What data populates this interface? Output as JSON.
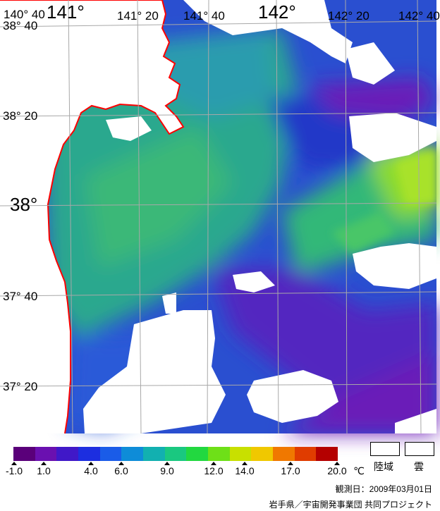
{
  "map": {
    "lon_labels": [
      "140° 40",
      "141°",
      "141° 20",
      "141° 40",
      "142°",
      "142° 20",
      "142° 40"
    ],
    "lat_labels": [
      "38° 40",
      "38° 20",
      "38°",
      "37° 40",
      "37° 20"
    ],
    "colors": {
      "land": "#ffffff",
      "cloud": "#ffffff",
      "coastline": "#ff0000",
      "grid": "#a8a8a8",
      "deep_purple": "#6a1fb8",
      "blue": "#1f3ad6",
      "teal": "#1aa3a0",
      "green": "#3ec56a",
      "yellow_green": "#a8e22a"
    }
  },
  "colorbar": {
    "stops": [
      "#5a007a",
      "#6a10b0",
      "#4018c8",
      "#1c2ee0",
      "#1a5ce8",
      "#0e8cd8",
      "#12b0b0",
      "#1ac880",
      "#22d840",
      "#6ee018",
      "#c8e000",
      "#f0c800",
      "#f07800",
      "#e03c00",
      "#b40000"
    ],
    "ticks": [
      "-1.0",
      "1.0",
      "4.0",
      "6.0",
      "9.0",
      "12.0",
      "14.0",
      "17.0",
      "20.0"
    ],
    "unit": "℃"
  },
  "legend": {
    "land_label": "陸域",
    "cloud_label": "雲"
  },
  "footer": {
    "observed": "観測日：2009年03月01日",
    "credit": "岩手県／宇宙開発事業団 共同プロジェクト"
  }
}
